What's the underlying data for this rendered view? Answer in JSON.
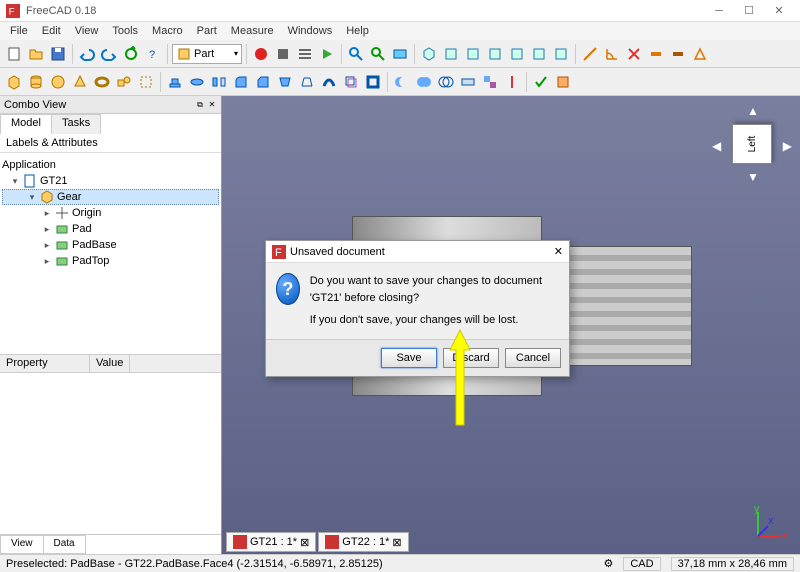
{
  "window": {
    "title": "FreeCAD 0.18"
  },
  "menus": [
    "File",
    "Edit",
    "View",
    "Tools",
    "Macro",
    "Part",
    "Measure",
    "Windows",
    "Help"
  ],
  "workbench": {
    "selected": "Part"
  },
  "comboView": {
    "title": "Combo View",
    "tabs": [
      "Model",
      "Tasks"
    ],
    "heading": "Labels & Attributes",
    "treeRoot": "Application",
    "tree": [
      {
        "label": "GT21",
        "depth": 0,
        "expanded": true,
        "icon": "doc"
      },
      {
        "label": "Gear",
        "depth": 1,
        "expanded": true,
        "icon": "part",
        "selected": true
      },
      {
        "label": "Origin",
        "depth": 2,
        "icon": "origin"
      },
      {
        "label": "Pad",
        "depth": 2,
        "icon": "pad"
      },
      {
        "label": "PadBase",
        "depth": 2,
        "icon": "pad"
      },
      {
        "label": "PadTop",
        "depth": 2,
        "icon": "pad"
      }
    ],
    "propHeaders": [
      "Property",
      "Value"
    ],
    "bottomTabs": [
      "View",
      "Data"
    ]
  },
  "navcube": {
    "face": "Left"
  },
  "dialog": {
    "title": "Unsaved document",
    "line1": "Do you want to save your changes to document 'GT21' before closing?",
    "line2": "If you don't save, your changes will be lost.",
    "buttons": {
      "save": "Save",
      "discard": "Discard",
      "cancel": "Cancel"
    }
  },
  "docTabs": [
    {
      "label": "GT21 : 1*",
      "modified": true
    },
    {
      "label": "GT22 : 1*",
      "modified": true
    }
  ],
  "status": {
    "preselected": "Preselected: PadBase - GT22.PadBase.Face4 (-2.31514, -6.58971, 2.85125)",
    "mode": "CAD",
    "dims": "37,18 mm x 28,46 mm"
  },
  "colors": {
    "highlight": "#cde6ff",
    "viewportTop": "#7a7fa0",
    "viewportBottom": "#5b6185",
    "arrow": "#ffff00"
  }
}
